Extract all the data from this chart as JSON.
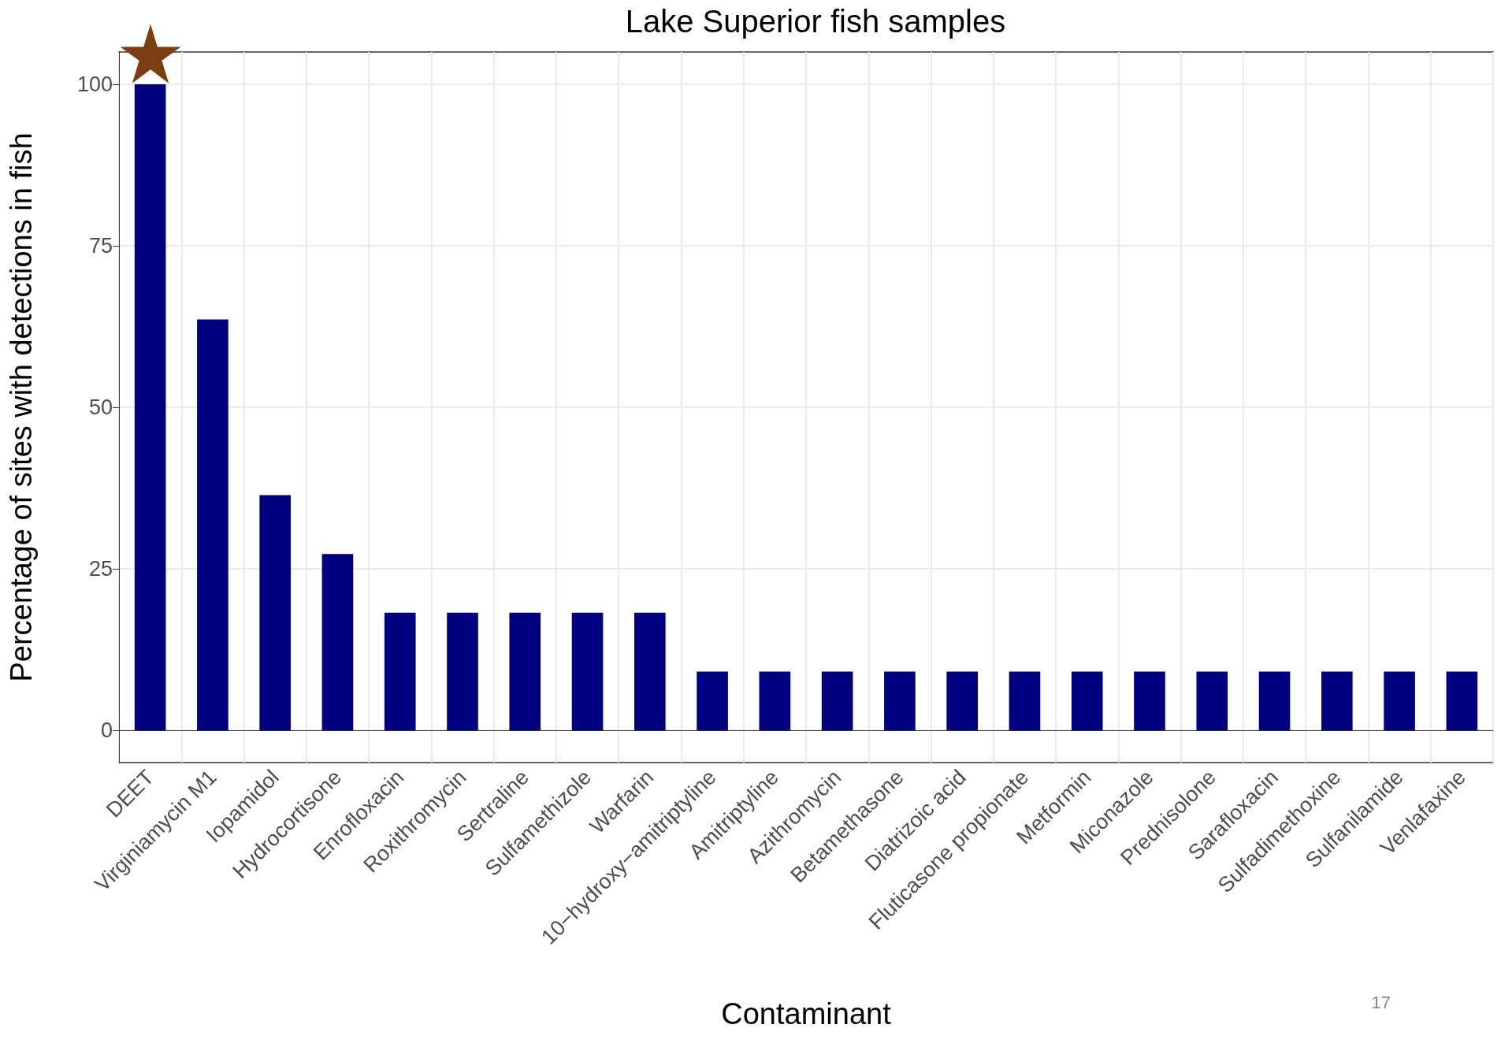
{
  "chart_data": {
    "type": "bar",
    "title": "Lake Superior fish samples",
    "xlabel": "Contaminant",
    "ylabel": "Percentage of sites with detections in fish",
    "categories": [
      "DEET",
      "Virginiamycin M1",
      "Iopamidol",
      "Hydrocortisone",
      "Enrofloxacin",
      "Roxithromycin",
      "Sertraline",
      "Sulfamethizole",
      "Warfarin",
      "10−hydroxy−amitriptyline",
      "Amitriptyline",
      "Azithromycin",
      "Betamethasone",
      "Diatrizoic acid",
      "Fluticasone propionate",
      "Metformin",
      "Miconazole",
      "Prednisolone",
      "Sarafloxacin",
      "Sulfadimethoxine",
      "Sulfanilamide",
      "Venlafaxine"
    ],
    "series": [
      {
        "color": "#000080",
        "values": [
          100,
          63.6,
          36.4,
          27.3,
          18.2,
          18.2,
          18.2,
          18.2,
          18.2,
          9.1,
          9.1,
          9.1,
          9.1,
          9.1,
          9.1,
          9.1,
          9.1,
          9.1,
          9.1,
          9.1,
          9.1,
          9.1
        ]
      }
    ],
    "ylim": [
      -5,
      105
    ],
    "yticks": [
      0,
      25,
      50,
      75,
      100
    ],
    "grid": true,
    "annotations": [
      "17"
    ]
  }
}
